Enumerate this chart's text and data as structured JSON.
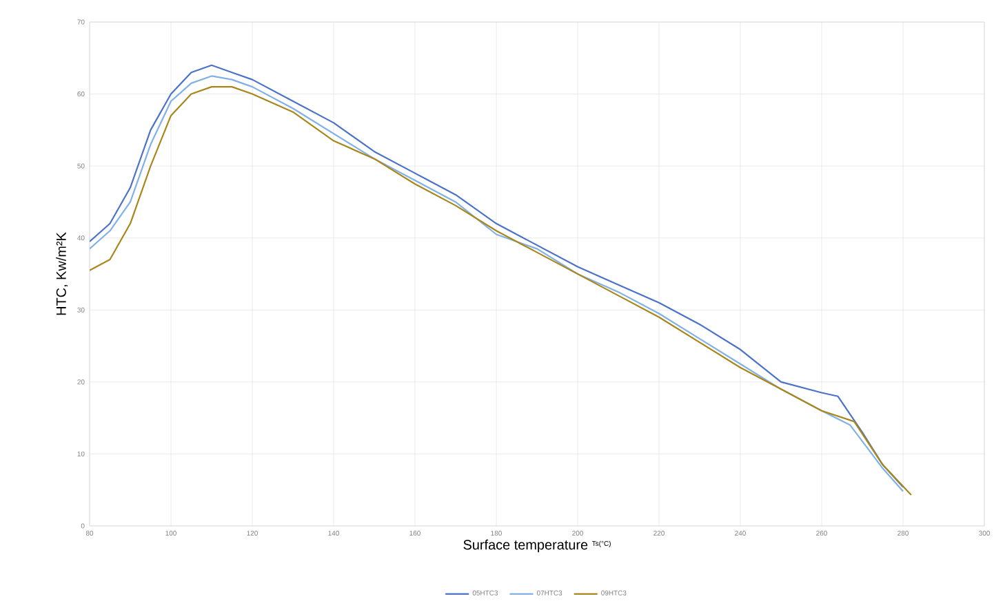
{
  "chart_data": {
    "type": "line",
    "xlabel": "Surface temperature",
    "ylabel": "HTC, Kw/m²K",
    "annotations": [
      "Ts(°C)"
    ],
    "xlim": [
      80,
      300
    ],
    "xticks": [
      80,
      100,
      120,
      140,
      160,
      180,
      200,
      220,
      240,
      260,
      280,
      300
    ],
    "ylim": [
      0,
      70
    ],
    "yticks": [
      0,
      10,
      20,
      30,
      40,
      50,
      60,
      70
    ],
    "grid": true,
    "legend": "bottom",
    "marker": "none",
    "line_style": "solid",
    "series": [
      {
        "name": "05HTC3",
        "color": "#4a72c8",
        "x": [
          80,
          85,
          90,
          95,
          100,
          105,
          110,
          115,
          120,
          130,
          140,
          150,
          160,
          170,
          180,
          190,
          200,
          210,
          220,
          230,
          240,
          250,
          260,
          264,
          270,
          275,
          280
        ],
        "values": [
          39.5,
          42,
          47,
          55,
          60,
          63,
          64,
          63,
          62,
          59,
          56,
          52,
          49,
          46,
          42,
          39,
          36,
          33.5,
          31,
          28,
          24.5,
          20,
          18.5,
          18,
          13,
          8.5,
          5.4
        ]
      },
      {
        "name": "07HTC3",
        "color": "#7fb1e6",
        "x": [
          80,
          85,
          90,
          95,
          100,
          105,
          110,
          115,
          120,
          130,
          140,
          150,
          160,
          170,
          180,
          190,
          200,
          210,
          220,
          230,
          240,
          250,
          260,
          267,
          275,
          280
        ],
        "values": [
          38.5,
          41,
          45,
          53,
          59,
          61.5,
          62.5,
          62,
          61,
          58,
          54.5,
          51,
          48,
          45,
          40.5,
          38.5,
          35,
          32.5,
          29.5,
          26,
          22.5,
          19,
          16,
          14,
          8,
          4.8
        ]
      },
      {
        "name": "09HTC3",
        "color": "#a8861a",
        "x": [
          80,
          85,
          90,
          95,
          100,
          105,
          110,
          115,
          120,
          130,
          140,
          150,
          160,
          170,
          180,
          190,
          200,
          210,
          220,
          230,
          240,
          250,
          260,
          268,
          275,
          282
        ],
        "values": [
          35.5,
          37,
          42,
          50,
          57,
          60,
          61,
          61,
          60,
          57.5,
          53.5,
          51,
          47.5,
          44.5,
          41,
          38,
          35,
          32,
          29,
          25.5,
          22,
          19,
          16,
          14.5,
          8.5,
          4.3
        ]
      }
    ]
  }
}
